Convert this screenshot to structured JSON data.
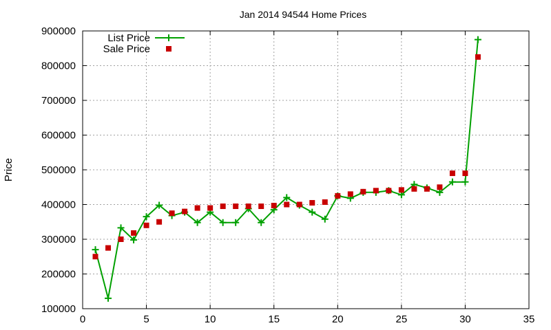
{
  "chart_data": {
    "type": "line",
    "title": "Jan 2014 94544 Home Prices",
    "xlabel": "",
    "ylabel": "Price",
    "xlim": [
      0,
      35
    ],
    "ylim": [
      100000,
      900000
    ],
    "xticks": [
      0,
      5,
      10,
      15,
      20,
      25,
      30,
      35
    ],
    "yticks": [
      100000,
      200000,
      300000,
      400000,
      500000,
      600000,
      700000,
      800000,
      900000
    ],
    "xtick_labels": [
      "0",
      "5",
      "10",
      "15",
      "20",
      "25",
      "30",
      "35"
    ],
    "ytick_labels": [
      "100000",
      "200000",
      "300000",
      "400000",
      "500000",
      "600000",
      "700000",
      "800000",
      "900000"
    ],
    "grid": true,
    "legend_position": "top-left",
    "series": [
      {
        "name": "List Price",
        "style": "linespoints",
        "marker": "plus",
        "color": "#00a000",
        "x": [
          1,
          2,
          3,
          4,
          5,
          6,
          7,
          8,
          9,
          10,
          11,
          12,
          13,
          14,
          15,
          16,
          17,
          18,
          19,
          20,
          21,
          22,
          23,
          24,
          25,
          26,
          27,
          28,
          29,
          30,
          31
        ],
        "values": [
          270000,
          130000,
          333000,
          298000,
          365000,
          398000,
          368000,
          378000,
          348000,
          378000,
          348000,
          348000,
          388000,
          348000,
          385000,
          420000,
          398000,
          378000,
          358000,
          425000,
          418000,
          435000,
          435000,
          440000,
          428000,
          458000,
          448000,
          435000,
          465000,
          465000,
          875000
        ]
      },
      {
        "name": "Sale Price",
        "style": "points",
        "marker": "square",
        "color": "#c80000",
        "x": [
          1,
          2,
          3,
          4,
          5,
          6,
          7,
          8,
          9,
          10,
          11,
          12,
          13,
          14,
          15,
          16,
          17,
          18,
          19,
          20,
          21,
          22,
          23,
          24,
          25,
          26,
          27,
          28,
          29,
          30,
          31
        ],
        "values": [
          250000,
          275000,
          300000,
          318000,
          340000,
          350000,
          375000,
          380000,
          390000,
          390000,
          395000,
          395000,
          395000,
          395000,
          397000,
          400000,
          400000,
          405000,
          407000,
          425000,
          430000,
          437000,
          440000,
          440000,
          442000,
          445000,
          445000,
          450000,
          490000,
          490000,
          825000
        ]
      }
    ]
  }
}
